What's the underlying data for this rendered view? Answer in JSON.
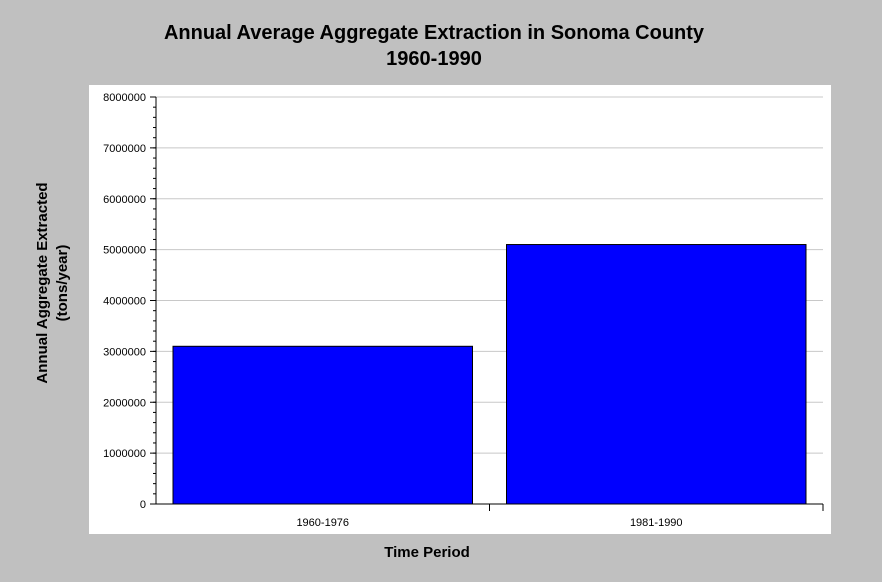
{
  "chart_data": {
    "type": "bar",
    "title_lines": [
      "Annual Average Aggregate Extraction in Sonoma County",
      "1960-1990"
    ],
    "xlabel": "Time Period",
    "ylabel_lines": [
      "Annual Aggregate Extracted",
      "(tons/year)"
    ],
    "categories": [
      "1960-1976",
      "1981-1990"
    ],
    "values": [
      3100000,
      5100000
    ],
    "ylim": [
      0,
      8000000
    ],
    "yticks": [
      "0",
      "1000000",
      "2000000",
      "3000000",
      "4000000",
      "5000000",
      "6000000",
      "7000000",
      "8000000"
    ],
    "grid": true,
    "bar_color": "#0000ff"
  }
}
